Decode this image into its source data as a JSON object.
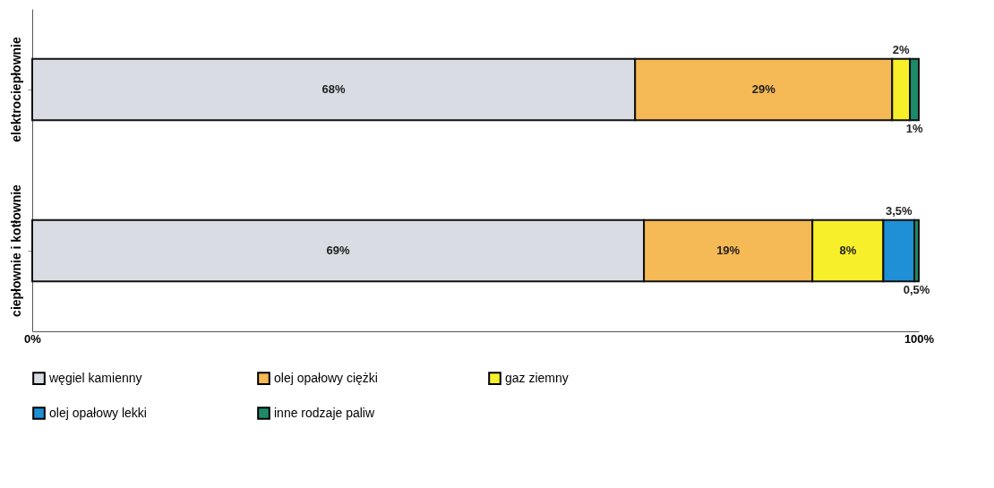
{
  "chart_data": {
    "type": "bar",
    "orientation": "horizontal",
    "stacked": true,
    "categories": [
      "elektrociepłownie",
      "ciepłownie i kotłownie"
    ],
    "series": [
      {
        "name": "węgiel kamienny",
        "color": "#d9dce3",
        "values": [
          68,
          69
        ],
        "value_labels": [
          "68%",
          "69%"
        ]
      },
      {
        "name": "olej opałowy ciężki",
        "color": "#f5b955",
        "values": [
          29,
          19
        ],
        "value_labels": [
          "29%",
          "19%"
        ]
      },
      {
        "name": "gaz ziemny",
        "color": "#f7ef2a",
        "values": [
          2,
          8
        ],
        "value_labels": [
          "2%",
          "8%"
        ]
      },
      {
        "name": "olej opałowy lekki",
        "color": "#1f8fd6",
        "values": [
          null,
          3.5
        ],
        "value_labels": [
          null,
          "3,5%"
        ]
      },
      {
        "name": "inne rodzaje paliw",
        "color": "#1e8a6a",
        "values": [
          1,
          0.5
        ],
        "value_labels": [
          "1%",
          "0,5%"
        ]
      }
    ],
    "xlim": [
      0,
      100
    ],
    "xticks": [
      {
        "value": 0,
        "label": "0%"
      },
      {
        "value": 100,
        "label": "100%"
      }
    ],
    "grid": false,
    "legend": "bottom"
  }
}
